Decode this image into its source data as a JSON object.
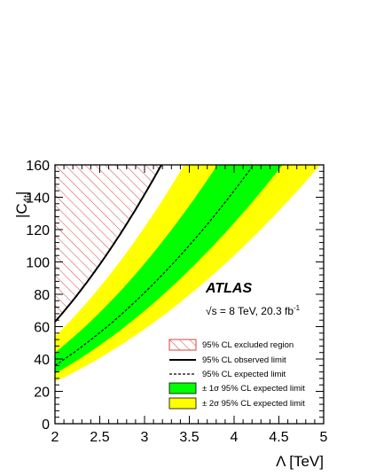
{
  "chart_data": {
    "type": "area",
    "xlabel": "Λ [TeV]",
    "ylabel_main": "|C",
    "ylabel_sub": "4t",
    "ylabel_bar": "|",
    "xlim": [
      2,
      5
    ],
    "ylim": [
      0,
      160
    ],
    "x_ticks": [
      "2",
      "2.5",
      "3",
      "3.5",
      "4",
      "4.5",
      "5"
    ],
    "y_ticks": [
      "0",
      "20",
      "40",
      "60",
      "80",
      "100",
      "120",
      "140",
      "160"
    ],
    "atlas_label": "ATLAS",
    "energy_label": {
      "sqrt": "√s",
      "text": " = 8 TeV, 20.3 fb",
      "sup": "-1"
    },
    "legend_placement": "bottom-right",
    "grid": false,
    "colors": {
      "excluded_hatch": "#d94040",
      "observed_line": "#000000",
      "expected_line": "#000000",
      "band_1sigma": "#00ff00",
      "band_2sigma": "#ffff00"
    },
    "legend": [
      {
        "label": "95% CL excluded region",
        "style": "hatch"
      },
      {
        "label": "95% CL observed limit",
        "style": "solid"
      },
      {
        "label": "95% CL expected limit",
        "style": "dashed"
      },
      {
        "label": "± 1σ 95% CL expected limit",
        "style": "band1"
      },
      {
        "label": "± 2σ 95% CL expected limit",
        "style": "band2"
      }
    ],
    "series": [
      {
        "name": "95% CL observed limit",
        "x": [
          2.0,
          2.25,
          2.5,
          2.75,
          3.0,
          3.25,
          3.27
        ],
        "y": [
          63.0,
          79.7,
          98.4,
          119.1,
          141.7,
          166.3,
          160.0
        ]
      },
      {
        "name": "95% CL expected limit",
        "x": [
          2.0,
          2.5,
          3.0,
          3.5,
          4.0,
          4.09
        ],
        "y": [
          36.0,
          56.3,
          81.0,
          110.3,
          144.0,
          160.0
        ]
      },
      {
        "name": "-2σ boundary",
        "x": [
          2.0,
          3.0,
          3.4
        ],
        "y": [
          54.0,
          121.5,
          160.0
        ]
      },
      {
        "name": "-1σ boundary",
        "x": [
          2.0,
          3.0,
          3.71
        ],
        "y": [
          44.0,
          99.0,
          160.0
        ]
      },
      {
        "name": "+1σ boundary",
        "x": [
          2.0,
          3.0,
          4.0,
          4.55
        ],
        "y": [
          31.0,
          69.8,
          124.0,
          160.0
        ]
      },
      {
        "name": "+2σ boundary",
        "x": [
          2.0,
          3.0,
          4.0,
          4.97
        ],
        "y": [
          26.0,
          58.5,
          104.0,
          160.0
        ]
      }
    ]
  }
}
